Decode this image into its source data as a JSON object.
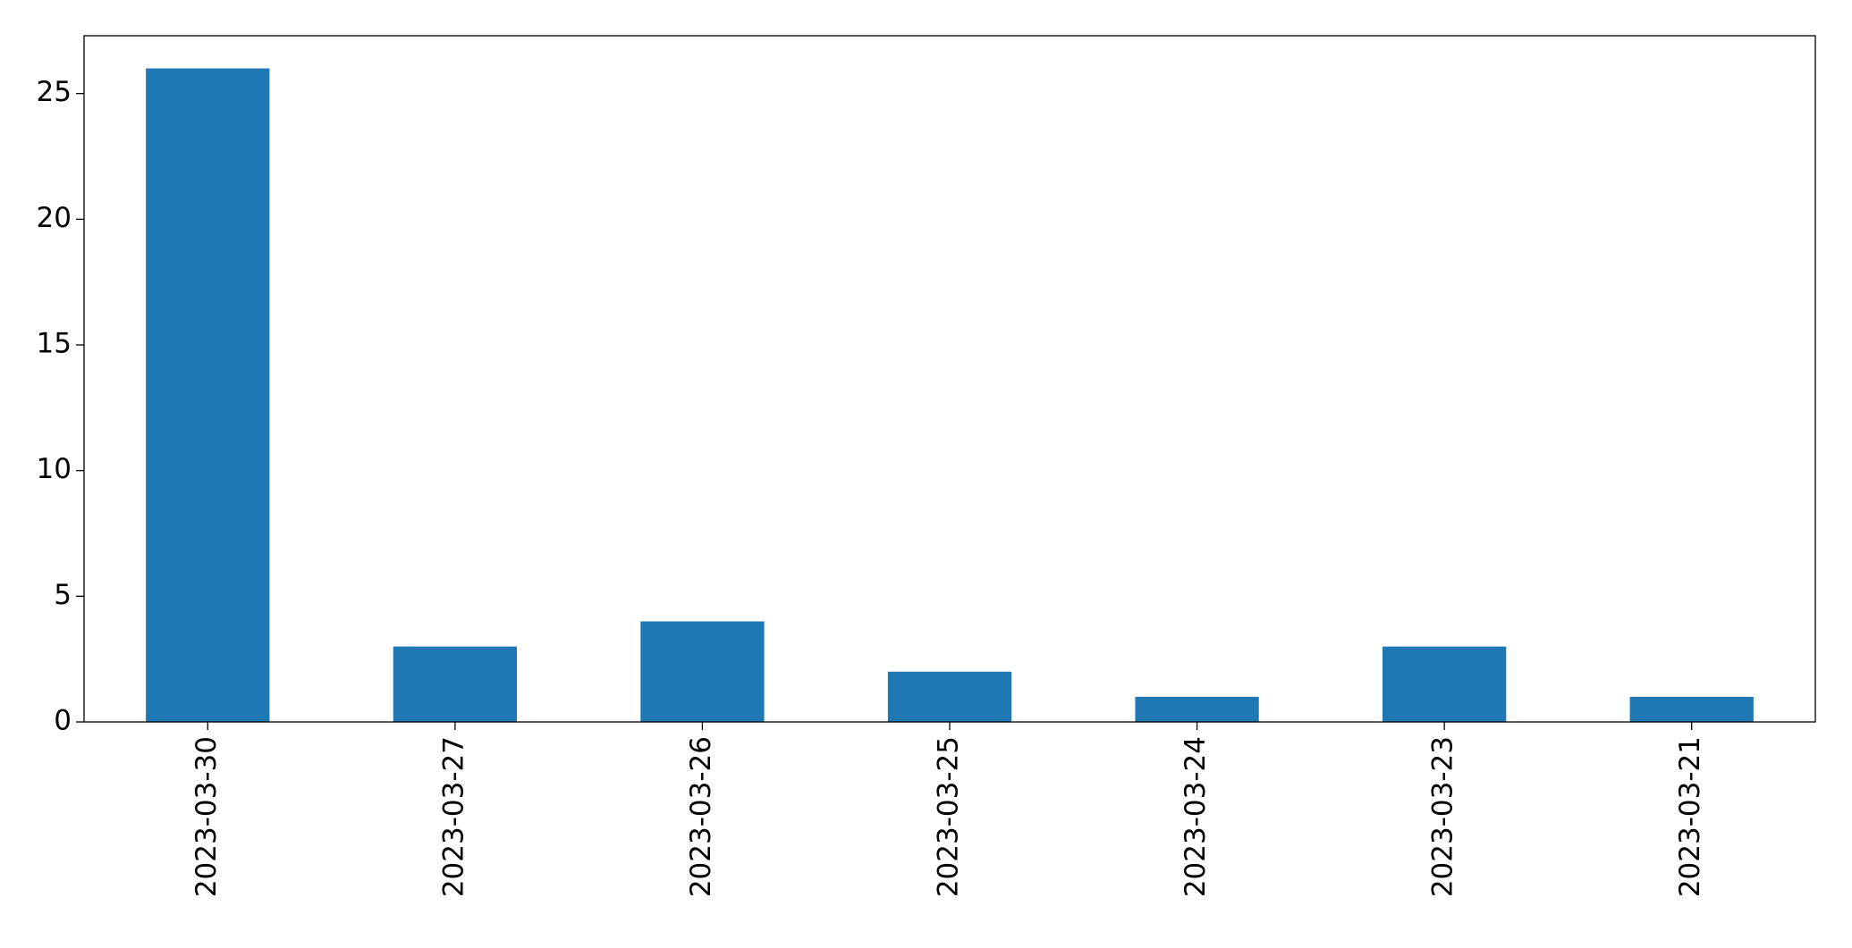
{
  "chart_data": {
    "type": "bar",
    "categories": [
      "2023-03-30",
      "2023-03-27",
      "2023-03-26",
      "2023-03-25",
      "2023-03-24",
      "2023-03-23",
      "2023-03-21"
    ],
    "values": [
      26,
      3,
      4,
      2,
      1,
      3,
      1
    ],
    "color": "#1f77b4",
    "ylim": [
      0,
      27.3
    ],
    "yticks": [
      0,
      5,
      10,
      15,
      20,
      25
    ],
    "grid": false
  }
}
